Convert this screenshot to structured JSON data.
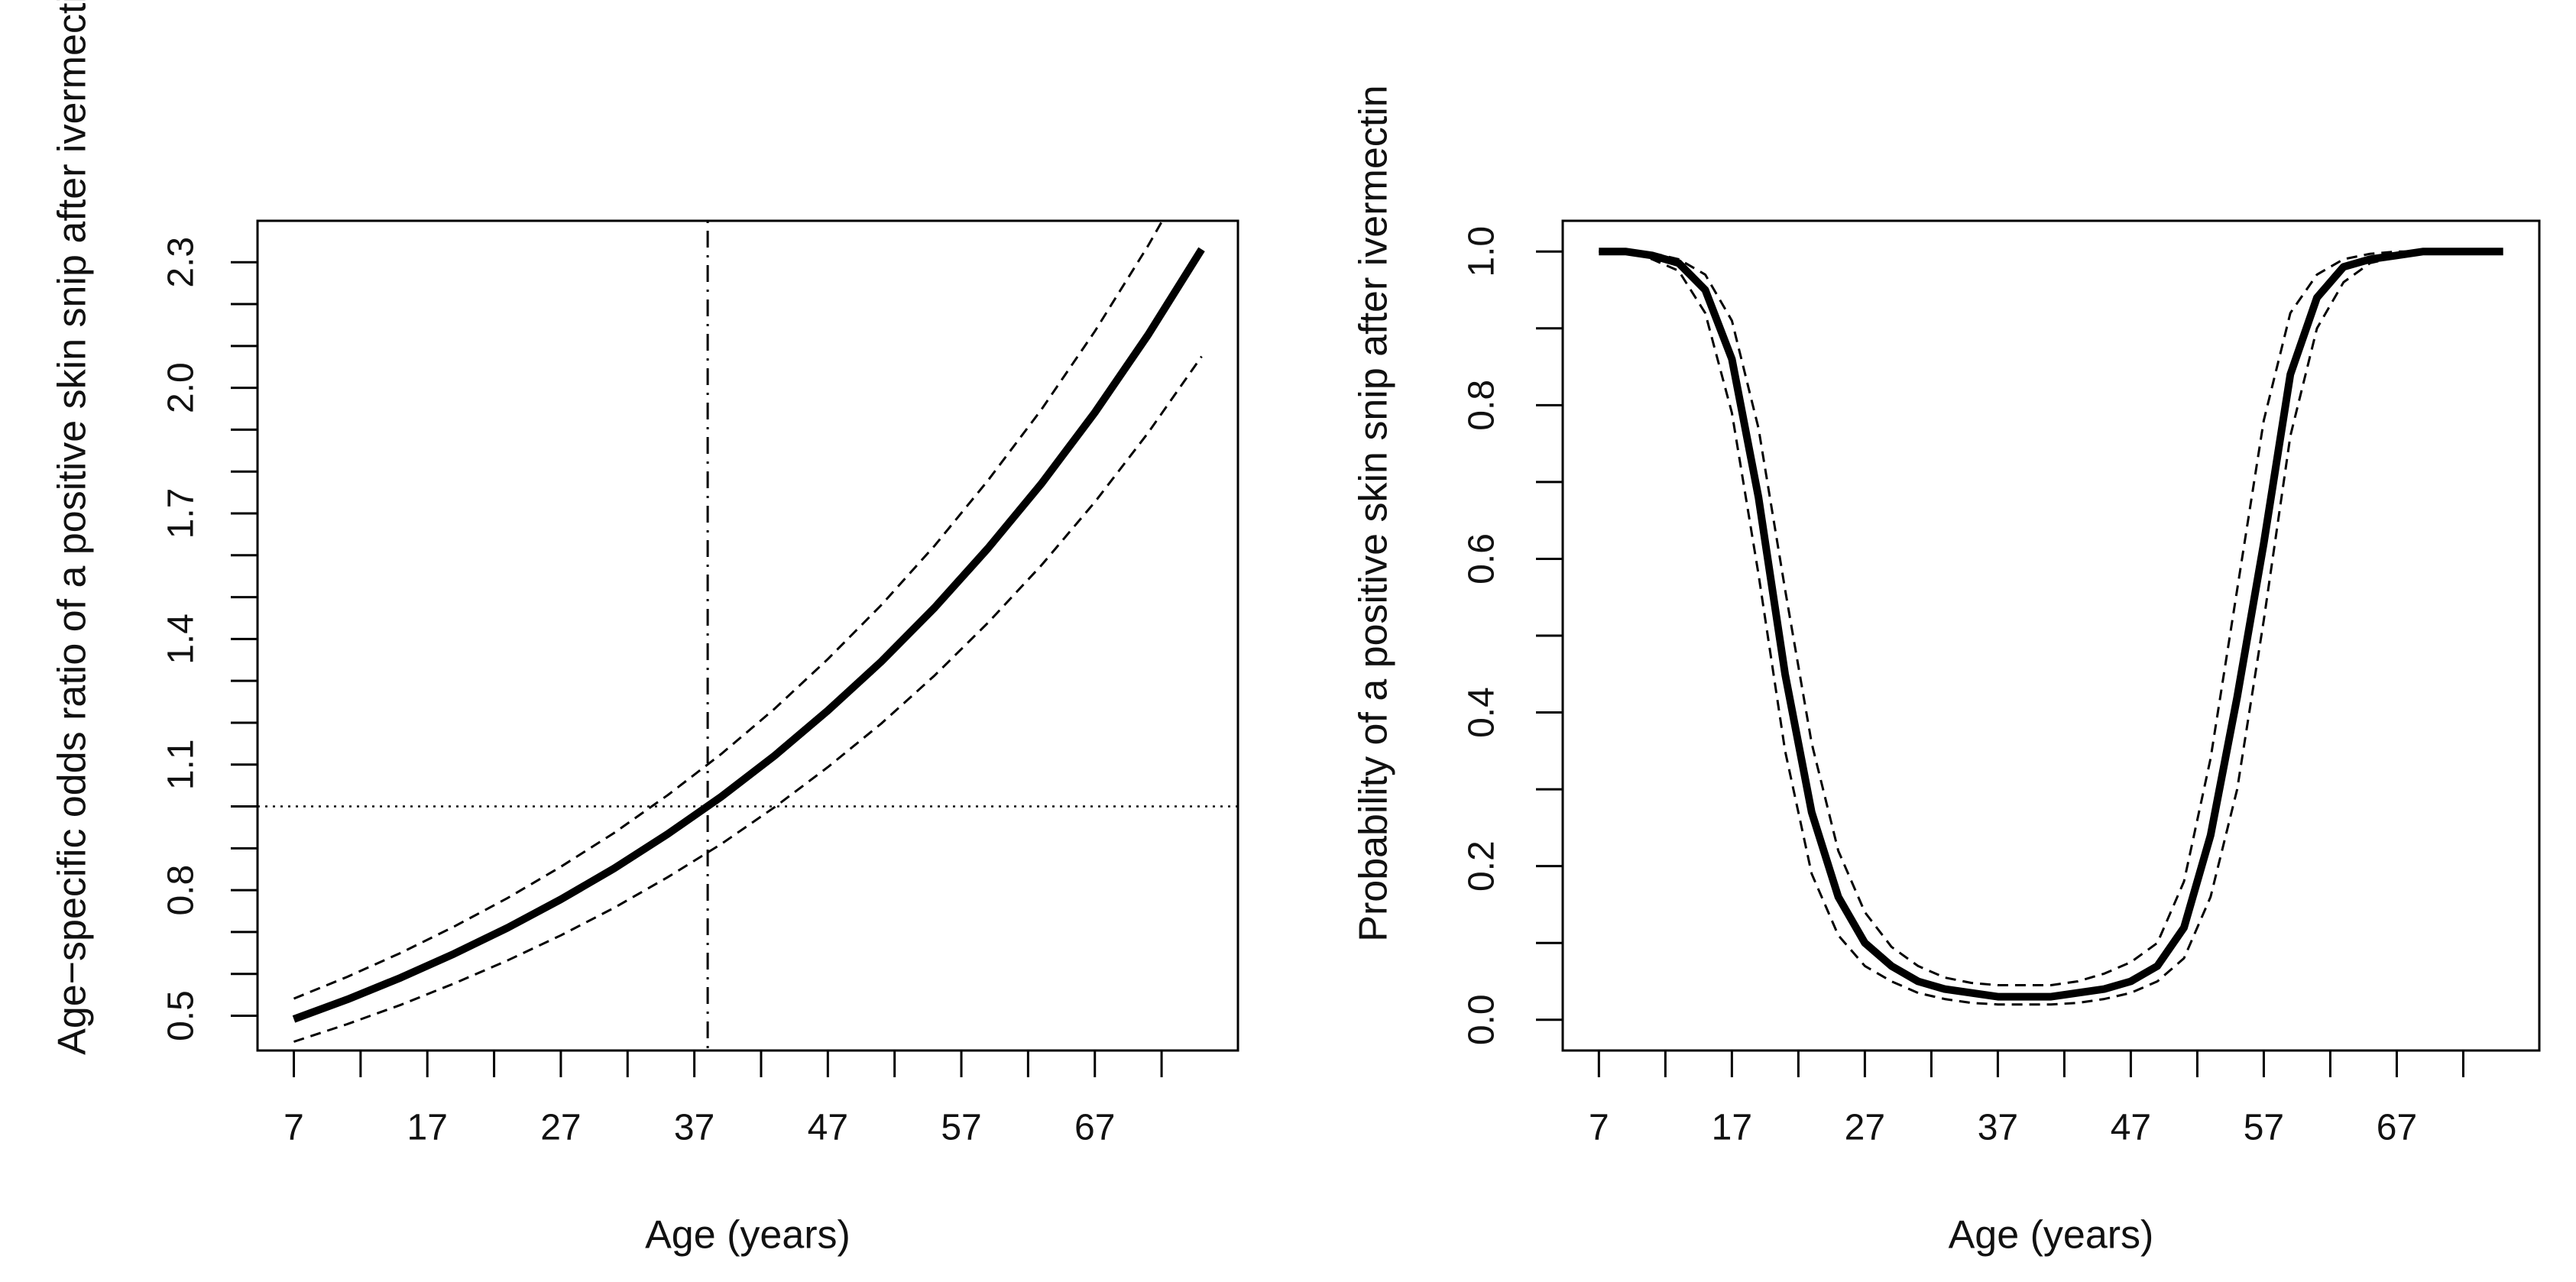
{
  "chart_data": [
    {
      "type": "line",
      "xlabel": "Age (years)",
      "ylabel": "Age−specific odds ratio of a positive skin snip after ivermectin",
      "xlim": [
        4.28,
        77.72
      ],
      "ylim": [
        0.417,
        2.399
      ],
      "xticks": [
        7,
        17,
        27,
        37,
        47,
        57,
        67
      ],
      "xminorticks": [
        12,
        22,
        32,
        42,
        52,
        62,
        72
      ],
      "yticks": [
        0.5,
        0.8,
        1.1,
        1.4,
        1.7,
        {
          "value": 2,
          "label": "2.0"
        },
        2.3
      ],
      "yminorticks": [
        0.6,
        0.7,
        0.9,
        1.0,
        1.2,
        1.3,
        1.5,
        1.6,
        1.8,
        1.9,
        2.1,
        2.2
      ],
      "vline": 38,
      "hline": 1,
      "x": [
        7,
        11,
        15,
        19,
        23,
        27,
        31,
        35,
        39,
        43,
        47,
        51,
        55,
        59,
        63,
        67,
        71,
        75
      ],
      "series": [
        {
          "color": "#000000",
          "style": "solid",
          "values": [
            0.492,
            0.539,
            0.591,
            0.648,
            0.71,
            0.778,
            0.852,
            0.934,
            1.023,
            1.121,
            1.229,
            1.346,
            1.475,
            1.617,
            1.771,
            1.941,
            2.127,
            2.331
          ]
        },
        {
          "color": "#000000",
          "style": "dashed",
          "values": [
            0.541,
            0.593,
            0.65,
            0.713,
            0.781,
            0.856,
            0.937,
            1.027,
            1.125,
            1.233,
            1.352,
            1.481,
            1.623,
            1.779,
            1.948,
            2.135,
            2.34,
            2.564
          ]
        },
        {
          "color": "#000000",
          "style": "dashed",
          "values": [
            0.438,
            0.48,
            0.526,
            0.577,
            0.632,
            0.692,
            0.758,
            0.831,
            0.91,
            0.998,
            1.094,
            1.198,
            1.313,
            1.439,
            1.576,
            1.727,
            1.893,
            2.075
          ]
        }
      ]
    },
    {
      "type": "line",
      "xlabel": "Age (years)",
      "ylabel": "Probability of a positive skin snip after ivermectin",
      "xlim": [
        4.28,
        77.72
      ],
      "ylim": [
        -0.04,
        1.04
      ],
      "xticks": [
        7,
        17,
        27,
        37,
        47,
        57,
        67
      ],
      "xminorticks": [
        12,
        22,
        32,
        42,
        52,
        62,
        72
      ],
      "yticks": [
        {
          "value": 0,
          "label": "0.0"
        },
        0.2,
        0.4,
        0.6,
        0.8,
        {
          "value": 1,
          "label": "1.0"
        }
      ],
      "yminorticks": [
        0.1,
        0.3,
        0.5,
        0.7,
        0.9
      ],
      "x": [
        7,
        9,
        11,
        13,
        15,
        17,
        19,
        21,
        23,
        25,
        27,
        29,
        31,
        33,
        35,
        37,
        39,
        41,
        43,
        45,
        47,
        49,
        51,
        53,
        55,
        57,
        59,
        61,
        63,
        65,
        67,
        69,
        71,
        73,
        75
      ],
      "series": [
        {
          "color": "#000000",
          "style": "solid",
          "values": [
            1.0,
            1.0,
            0.995,
            0.985,
            0.95,
            0.86,
            0.68,
            0.45,
            0.27,
            0.16,
            0.1,
            0.07,
            0.05,
            0.04,
            0.035,
            0.03,
            0.03,
            0.03,
            0.035,
            0.04,
            0.05,
            0.07,
            0.12,
            0.24,
            0.42,
            0.62,
            0.84,
            0.94,
            0.98,
            0.99,
            0.995,
            1.0,
            1.0,
            1.0,
            1.0
          ]
        },
        {
          "color": "#000000",
          "style": "dashed",
          "values": [
            1.0,
            1.0,
            0.998,
            0.99,
            0.97,
            0.91,
            0.77,
            0.56,
            0.36,
            0.22,
            0.14,
            0.095,
            0.07,
            0.055,
            0.048,
            0.045,
            0.045,
            0.045,
            0.05,
            0.06,
            0.075,
            0.1,
            0.18,
            0.34,
            0.56,
            0.78,
            0.92,
            0.97,
            0.99,
            0.997,
            1.0,
            1.0,
            1.0,
            1.0,
            1.0
          ]
        },
        {
          "color": "#000000",
          "style": "dashed",
          "values": [
            1.0,
            1.0,
            0.99,
            0.975,
            0.92,
            0.79,
            0.58,
            0.35,
            0.19,
            0.11,
            0.07,
            0.05,
            0.035,
            0.027,
            0.022,
            0.02,
            0.02,
            0.02,
            0.022,
            0.027,
            0.035,
            0.05,
            0.08,
            0.16,
            0.3,
            0.52,
            0.76,
            0.9,
            0.96,
            0.985,
            0.993,
            1.0,
            1.0,
            1.0,
            1.0
          ]
        }
      ]
    }
  ]
}
